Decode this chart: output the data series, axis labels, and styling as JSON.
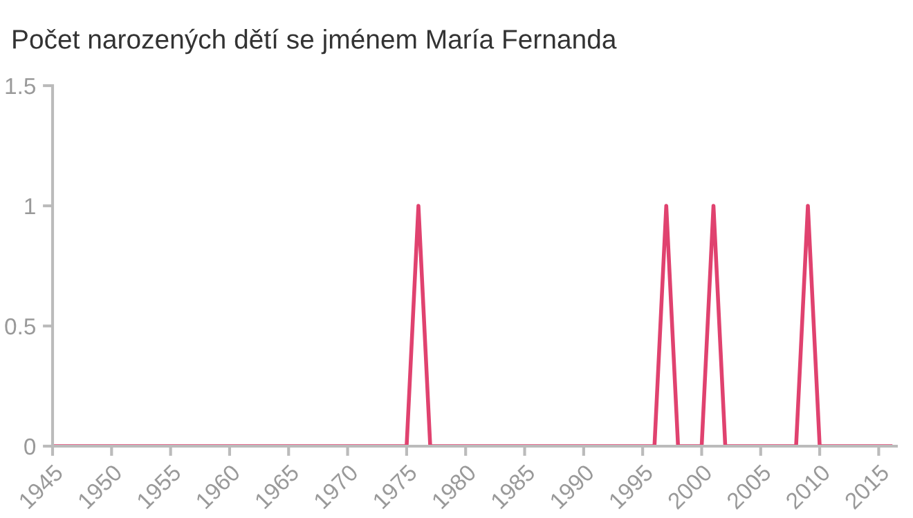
{
  "chart_data": {
    "type": "line",
    "title": "Počet narozených dětí se jménem María Fernanda",
    "x": [
      1945,
      1975,
      1976,
      1977,
      1996,
      1997,
      1998,
      2000,
      2001,
      2002,
      2008,
      2009,
      2010,
      2016
    ],
    "series": [
      {
        "color": "#e0426f",
        "values": [
          0,
          0,
          1,
          0,
          0,
          1,
          0,
          0,
          1,
          0,
          0,
          1,
          0,
          0
        ]
      }
    ],
    "xlim": [
      1945,
      2016.5
    ],
    "xticks": [
      1945,
      1950,
      1955,
      1960,
      1965,
      1970,
      1975,
      1980,
      1985,
      1990,
      1995,
      2000,
      2005,
      2010,
      2015
    ],
    "ylim": [
      0,
      1.5
    ],
    "yticks": [
      0,
      0.5,
      1,
      1.5
    ],
    "grid": false,
    "legend": false,
    "marker": "none",
    "line_style": "solid"
  }
}
